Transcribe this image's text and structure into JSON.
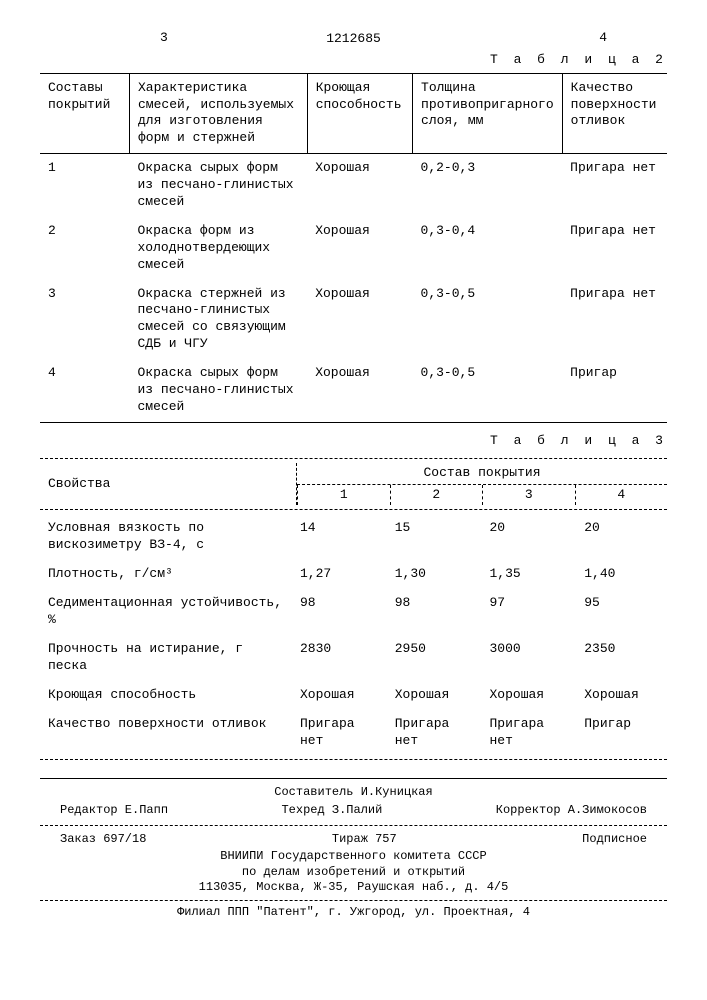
{
  "top_left_num": "3",
  "top_right_num": "4",
  "doc_number": "1212685",
  "table2": {
    "label": "Т а б л и ц а   2",
    "headers": {
      "c1": "Составы покрытий",
      "c2": "Характеристика смесей, используемых для изготовления форм и стержней",
      "c3": "Кроющая способность",
      "c4": "Толщина противопригарного слоя, мм",
      "c5": "Качество поверхности отливок"
    },
    "rows": [
      {
        "n": "1",
        "desc": "Окраска сырых форм из песчано-глинистых смесей",
        "cover": "Хорошая",
        "th": "0,2-0,3",
        "q": "Пригара нет"
      },
      {
        "n": "2",
        "desc": "Окраска форм из холоднотвердеющих смесей",
        "cover": "Хорошая",
        "th": "0,3-0,4",
        "q": "Пригара нет"
      },
      {
        "n": "3",
        "desc": "Окраска стержней из песчано-глинистых смесей со связующим СДБ и ЧГУ",
        "cover": "Хорошая",
        "th": "0,3-0,5",
        "q": "Пригара нет"
      },
      {
        "n": "4",
        "desc": "Окраска сырых форм из песчано-глинистых смесей",
        "cover": "Хорошая",
        "th": "0,3-0,5",
        "q": "Пригар"
      }
    ]
  },
  "table3": {
    "label": "Т а б л и ц а   3",
    "left_header": "Свойства",
    "right_header": "Состав покрытия",
    "cols": [
      "1",
      "2",
      "3",
      "4"
    ],
    "rows": [
      {
        "lbl": "Условная вязкость по вискозиметру ВЗ-4, с",
        "v": [
          "14",
          "15",
          "20",
          "20"
        ]
      },
      {
        "lbl": "Плотность, г/см³",
        "v": [
          "1,27",
          "1,30",
          "1,35",
          "1,40"
        ]
      },
      {
        "lbl": "Седиментационная устойчивость, %",
        "v": [
          "98",
          "98",
          "97",
          "95"
        ]
      },
      {
        "lbl": "Прочность на истирание, г песка",
        "v": [
          "2830",
          "2950",
          "3000",
          "2350"
        ]
      },
      {
        "lbl": "Кроющая способность",
        "v": [
          "Хорошая",
          "Хорошая",
          "Хорошая",
          "Хорошая"
        ]
      },
      {
        "lbl": "Качество поверхности отливок",
        "v": [
          "Пригара нет",
          "Пригара нет",
          "Пригара нет",
          "Пригар"
        ]
      }
    ]
  },
  "footer": {
    "editor": "Редактор Е.Папп",
    "compiler": "Составитель И.Куницкая",
    "techred": "Техред З.Палий",
    "corrector": "Корректор А.Зимокосов",
    "order": "Заказ 697/18",
    "tirazh": "Тираж 757",
    "subscription": "Подписное",
    "org1": "ВНИИПИ Государственного комитета СССР",
    "org2": "по делам изобретений и открытий",
    "addr1": "113035, Москва, Ж-35, Раушская наб., д. 4/5",
    "branch": "Филиал ППП \"Патент\", г. Ужгород, ул. Проектная, 4"
  }
}
